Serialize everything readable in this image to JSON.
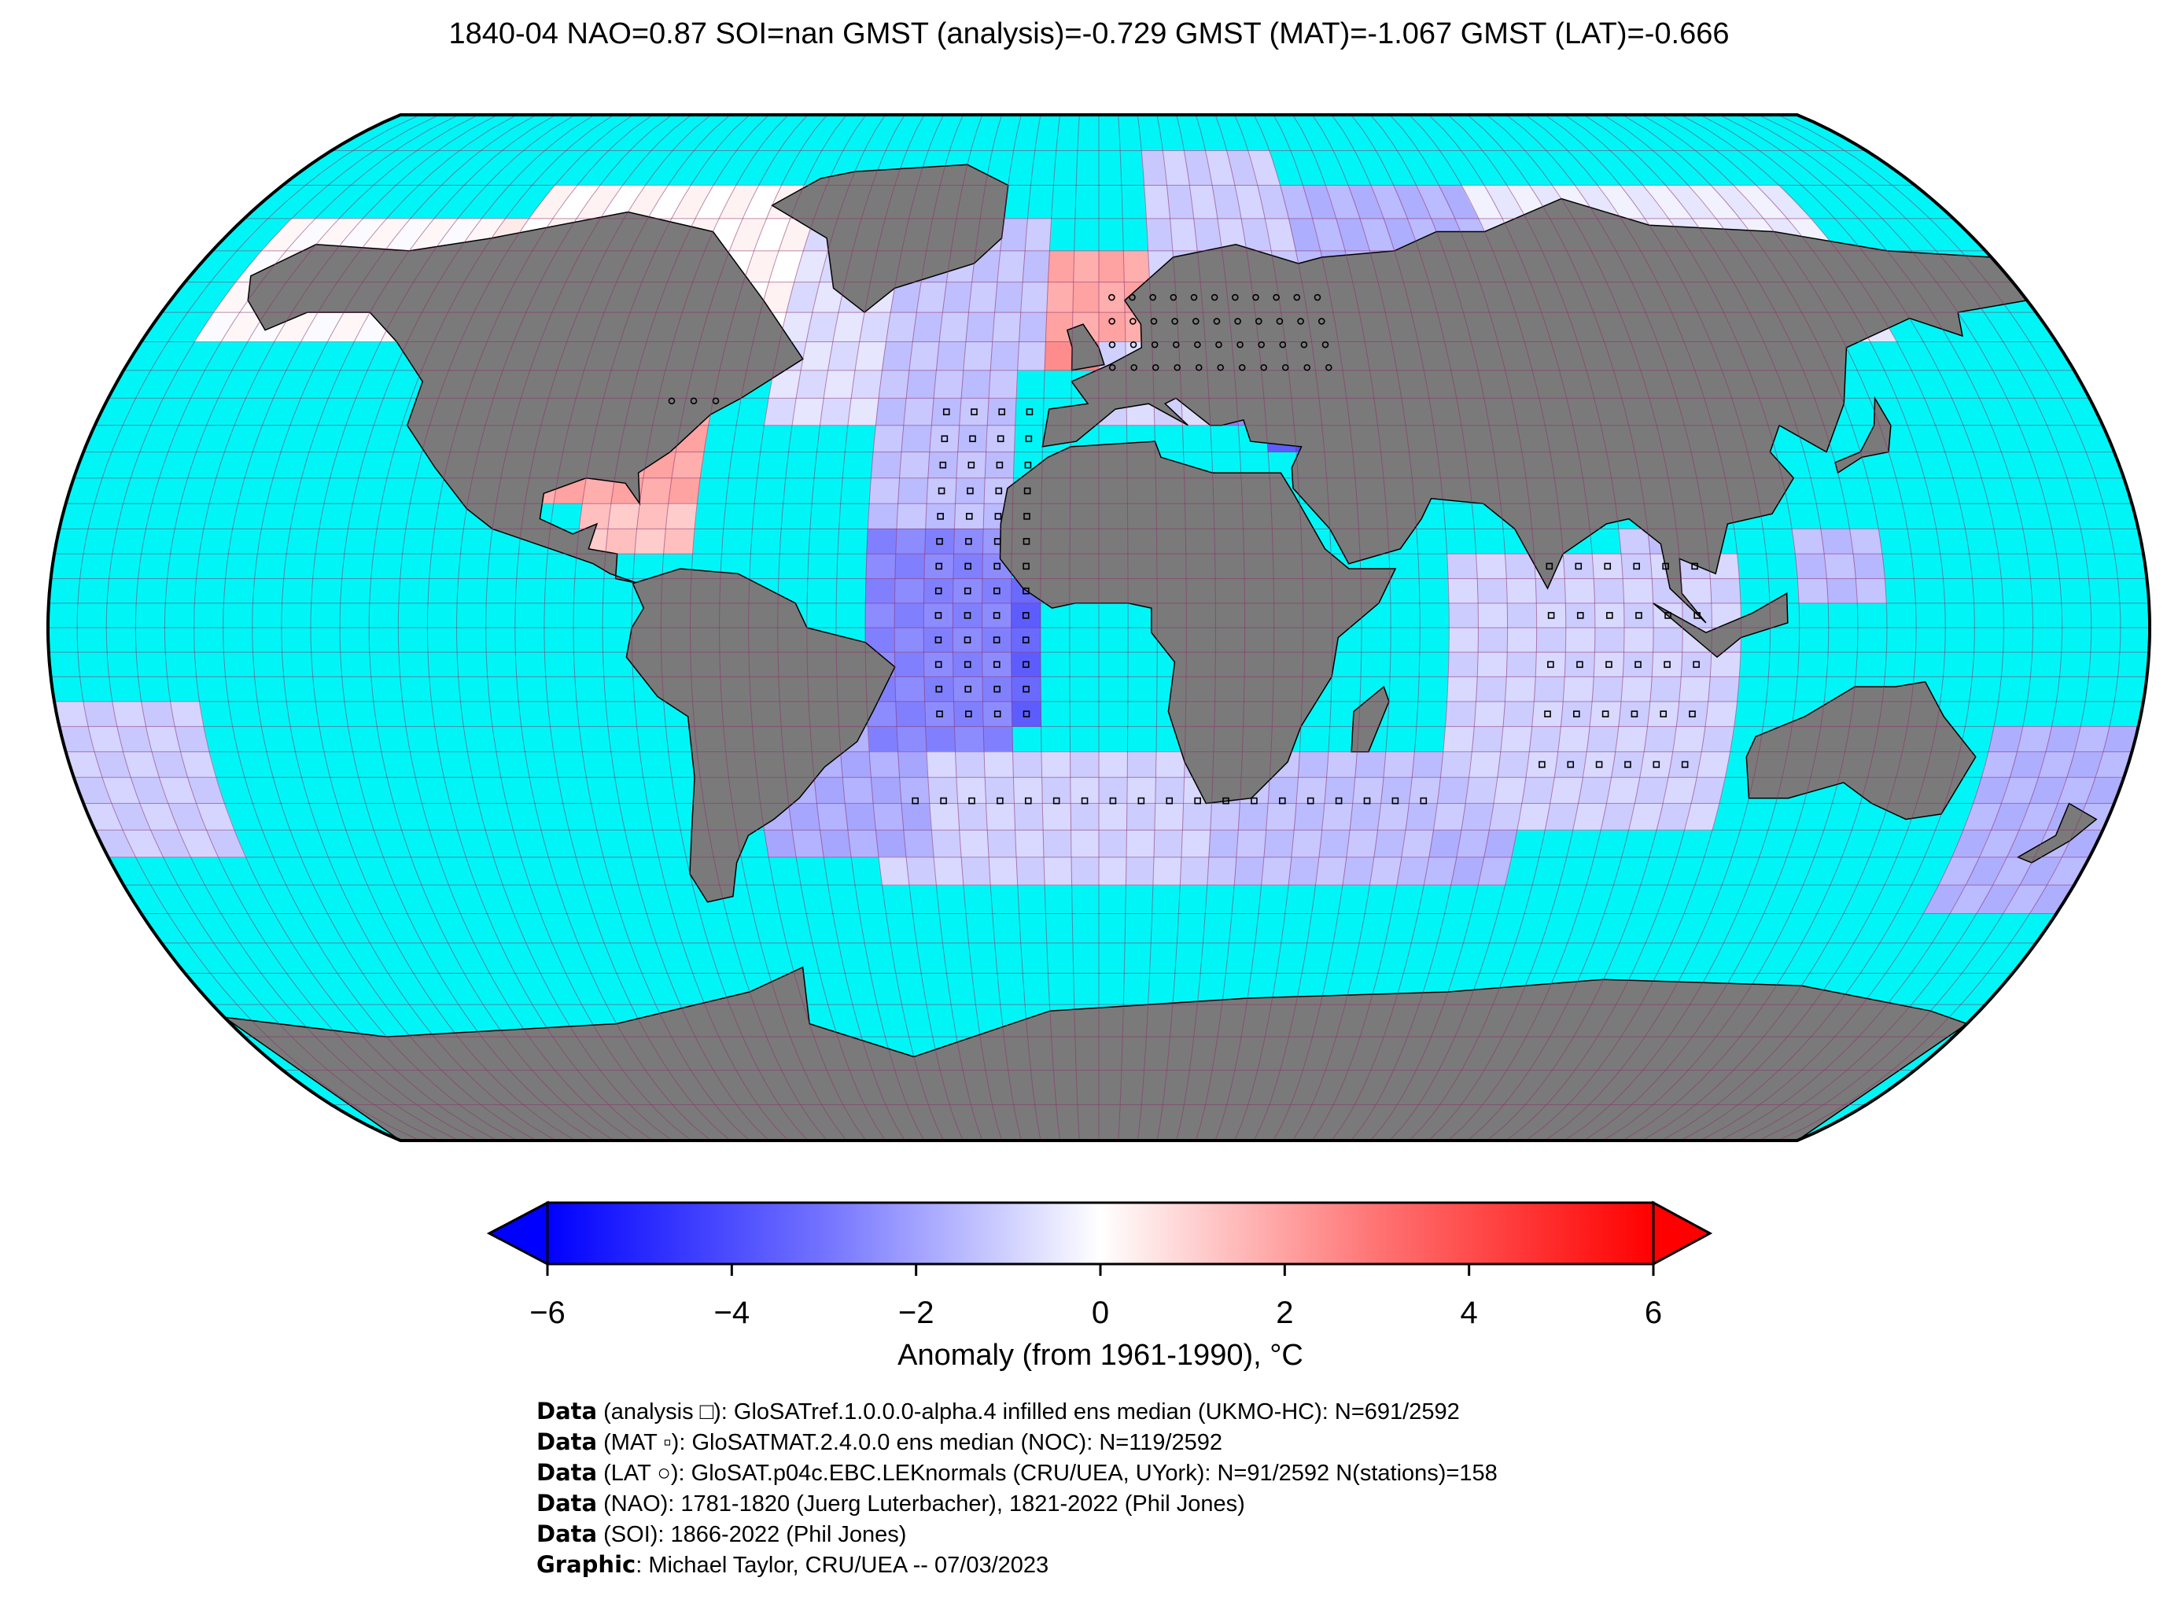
{
  "title": "1840-04 NAO=0.87 SOI=nan GMST (analysis)=-0.729 GMST (MAT)=-1.067 GMST (LAT)=-0.666",
  "colors": {
    "ocean": "#00f6f6",
    "land": "#7a7a7a",
    "grid": "#8a2f6a",
    "cmap_min": "#0000ff",
    "cmap_mid": "#ffffff",
    "cmap_max": "#ff0000"
  },
  "colorbar": {
    "ticks": [
      "−6",
      "−4",
      "−2",
      "0",
      "2",
      "4",
      "6"
    ],
    "tick_values": [
      -6,
      -4,
      -2,
      0,
      2,
      4,
      6
    ],
    "label": "Anomaly (from 1961-1990), °C"
  },
  "credits": [
    {
      "key": "Data",
      "text": " (analysis □): GloSATref.1.0.0.0-alpha.4 infilled ens median (UKMO-HC): N=691/2592"
    },
    {
      "key": "Data",
      "text": " (MAT ▫): GloSATMAT.2.4.0.0 ens median (NOC): N=119/2592"
    },
    {
      "key": "Data",
      "text": " (LAT ○): GloSAT.p04c.EBC.LEKnormals (CRU/UEA, UYork): N=91/2592 N(stations)=158"
    },
    {
      "key": "Data",
      "text": " (NAO): 1781-1820 (Juerg Luterbacher), 1821-2022 (Phil Jones)"
    },
    {
      "key": "Data",
      "text": " (SOI): 1866-2022 (Phil Jones)"
    },
    {
      "key": "Graphic",
      "text": ": Michael Taylor, CRU/UEA -- 07/03/2023"
    }
  ]
}
